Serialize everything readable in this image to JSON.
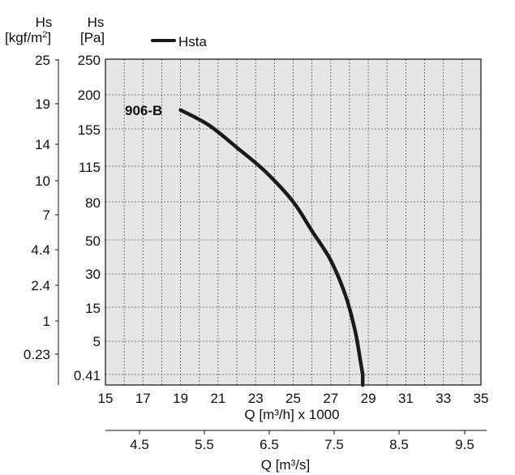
{
  "chart_data": {
    "type": "line",
    "legend": {
      "label": "Hsta",
      "placement": "top"
    },
    "curve_label": "906-B",
    "pa_axis": {
      "unit_line1": "Hs",
      "unit_line2": "[Pa]",
      "ticks": [
        "250",
        "200",
        "155",
        "115",
        "80",
        "50",
        "30",
        "15",
        "5",
        "0.41"
      ]
    },
    "kgf_axis": {
      "unit_line1": "Hs",
      "unit_line2": "[kgf/m",
      "unit_sup": "2",
      "unit_close": "]",
      "ticks": [
        "25",
        "19",
        "14",
        "10",
        "7",
        "4.4",
        "2.4",
        "1",
        "0.23"
      ]
    },
    "x_axis": {
      "label": "Q [m³/h] x 1000",
      "ticks": [
        15,
        17,
        19,
        21,
        23,
        25,
        27,
        29,
        31,
        33,
        35
      ],
      "range": [
        15,
        35
      ]
    },
    "x2_axis": {
      "label": "Q [m³/s]",
      "ticks": [
        "4.5",
        "5.5",
        "6.5",
        "7.5",
        "8.5",
        "9.5"
      ]
    },
    "series": [
      {
        "name": "Hsta",
        "x": [
          19.0,
          20.5,
          22.0,
          23.5,
          25.0,
          26.0,
          27.0,
          27.8,
          28.3,
          28.6,
          28.7
        ],
        "y": [
          180,
          160,
          135,
          110,
          80,
          57,
          38,
          20,
          8,
          2,
          0.41
        ]
      }
    ],
    "grid": true,
    "background": "#e6e6e6",
    "line_color": "#1a1a1a"
  }
}
